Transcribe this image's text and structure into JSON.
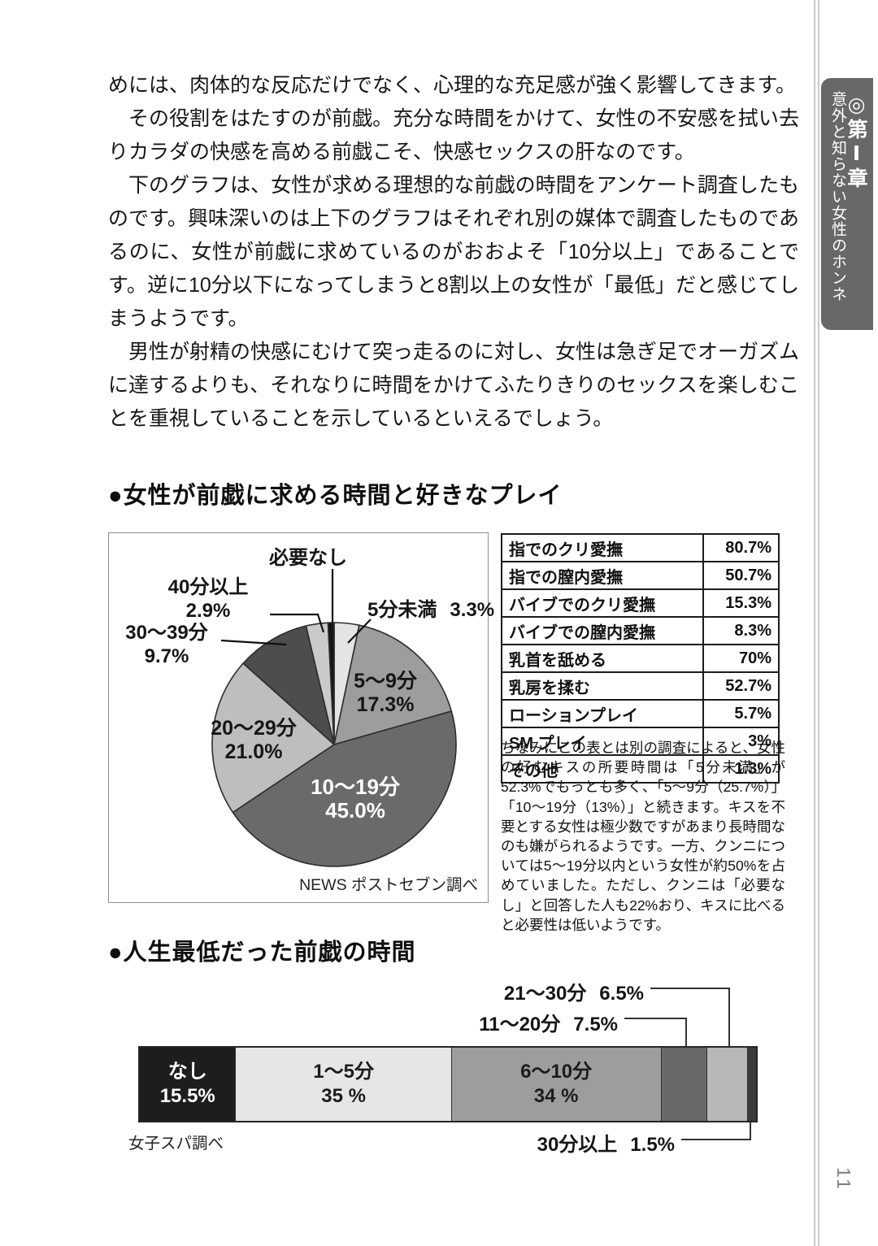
{
  "body": {
    "paragraphs": [
      "めには、肉体的な反応だけでなく、心理的な充足感が強く影響してきます。",
      "その役割をはたすのが前戯。充分な時間をかけて、女性の不安感を拭い去りカラダの快感を高める前戯こそ、快感セックスの肝なのです。",
      "下のグラフは、女性が求める理想的な前戯の時間をアンケート調査したものです。興味深いのは上下のグラフはそれぞれ別の媒体で調査したものであるのに、女性が前戯に求めているのがおおよそ「10分以上」であることです。逆に10分以下になってしまうと8割以上の女性が「最低」だと感じてしまうようです。",
      "男性が射精の快感にむけて突っ走るのに対し、女性は急ぎ足でオーガズムに達するよりも、それなりに時間をかけてふたりきりのセックスを楽しむことを重視していることを示しているといえるでしょう。"
    ]
  },
  "sidebar": {
    "chapter": "◎第Ⅰ章",
    "subtitle": "意外と知らない女性のホンネ",
    "page_number": "11"
  },
  "section1": {
    "heading": "●女性が前戯に求める時間と好きなプレイ"
  },
  "section2": {
    "heading": "●人生最低だった前戯の時間"
  },
  "play_table": {
    "rows": [
      {
        "label": "指でのクリ愛撫",
        "value": "80.7%"
      },
      {
        "label": "指での膣内愛撫",
        "value": "50.7%"
      },
      {
        "label": "バイブでのクリ愛撫",
        "value": "15.3%"
      },
      {
        "label": "バイブでの膣内愛撫",
        "value": "8.3%"
      },
      {
        "label": "乳首を舐める",
        "value": "70%"
      },
      {
        "label": "乳房を揉む",
        "value": "52.7%"
      },
      {
        "label": "ローションプレイ",
        "value": "5.7%"
      },
      {
        "label": "SM プレイ",
        "value": "3%"
      },
      {
        "label": "その他",
        "value": "1.3%"
      }
    ]
  },
  "note": "ちなみにこの表とは別の調査によると、女性の好むキスの所要時間は「5分未満」が52.3%でもっとも多く、「5～9分（25.7%）」「10～19分（13%）」と続きます。キスを不要とする女性は極少数ですがあまり長時間なのも嫌がられるようです。一方、クンニについては5～19分以内という女性が約50%を占めていました。ただし、クンニは「必要なし」と回答した人も22%おり、キスに比べると必要性は低いようです。",
  "chart_data": [
    {
      "type": "pie",
      "title": "女性が求める理想的な前戯の時間",
      "source": "NEWS ポストセブン調べ",
      "slices": [
        {
          "label": "5分未満",
          "value": 3.3,
          "pct": "3.3%",
          "color": "#e4e4e4"
        },
        {
          "label": "5～9分",
          "value": 17.3,
          "pct": "17.3%",
          "color": "#9d9d9d"
        },
        {
          "label": "10～19分",
          "value": 45.0,
          "pct": "45.0%",
          "color": "#6a6a6a"
        },
        {
          "label": "20～29分",
          "value": 21.0,
          "pct": "21.0%",
          "color": "#bebebe"
        },
        {
          "label": "30～39分",
          "value": 9.7,
          "pct": "9.7%",
          "color": "#4d4d4d"
        },
        {
          "label": "40分以上",
          "value": 2.9,
          "pct": "2.9%",
          "color": "#cacaca"
        },
        {
          "label": "必要なし",
          "value": 0.8,
          "pct": "",
          "color": "#151515"
        }
      ]
    },
    {
      "type": "bar",
      "title": "人生最低だった前戯の時間",
      "source": "女子スパ調べ",
      "orientation": "horizontal-stacked",
      "xlim": [
        0,
        100
      ],
      "segments": [
        {
          "label": "なし",
          "value": 15.5,
          "pct": "15.5%",
          "color": "#1d1d1d",
          "text": "#ffffff",
          "inside": true
        },
        {
          "label": "1～5分",
          "value": 35,
          "pct": "35 %",
          "color": "#e6e6e6",
          "text": "#1c1c1c",
          "inside": true
        },
        {
          "label": "6～10分",
          "value": 34,
          "pct": "34 %",
          "color": "#9d9d9d",
          "text": "#1c1c1c",
          "inside": true
        },
        {
          "label": "11～20分",
          "value": 7.5,
          "pct": "7.5%",
          "color": "#686868",
          "inside": false
        },
        {
          "label": "21～30分",
          "value": 6.5,
          "pct": "6.5%",
          "color": "#b7b7b7",
          "inside": false
        },
        {
          "label": "30分以上",
          "value": 1.5,
          "pct": "1.5%",
          "color": "#3b3b3b",
          "inside": false
        }
      ]
    }
  ]
}
